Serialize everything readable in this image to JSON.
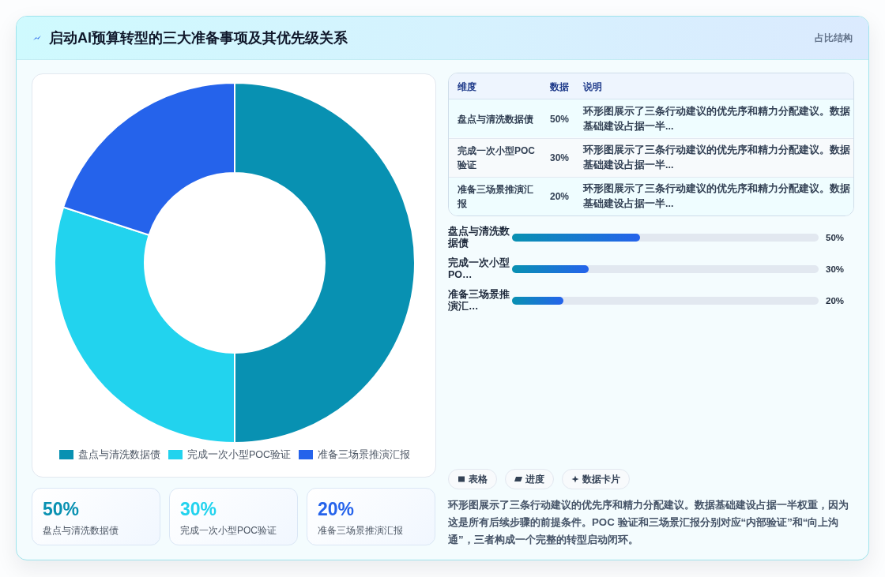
{
  "chart_data": [
    {
      "type": "other",
      "title": "启动AI预算转型的三大准备事项及其优先级关系",
      "subtitle": "占比结构"
    },
    {
      "type": "donut",
      "categories": [
        "盘点与清洗数据债",
        "完成一次小型POC验证",
        "准备三场景推演汇报"
      ],
      "values": [
        50,
        30,
        20
      ],
      "colors": [
        "#0891b2",
        "#22d3ee",
        "#2563eb"
      ],
      "legend": "bottom"
    },
    {
      "type": "other",
      "categories": [
        "盘点与清洗数据债",
        "完成一次小型POC验证",
        "准备三场景推演汇报"
      ],
      "value_labels": [
        "50%",
        "30%",
        "20%"
      ],
      "annotations": [
        "维度",
        "数据",
        "说明",
        "环形图展示了三条行动建议的优先序和精力分配建议。数据基础建设占据一半...",
        "环形图展示了三条行动建议的优先序和精力分配建议。数据基础建设占据一半...",
        "环形图展示了三条行动建议的优先序和精力分配建议。数据基础建设占据一半..."
      ]
    },
    {
      "type": "bar",
      "orientation": "horizontal",
      "categories": [
        "盘点与清洗数据债",
        "完成一次小型PO…",
        "准备三场景推演汇…"
      ],
      "values": [
        50,
        30,
        20
      ],
      "value_labels": [
        "50%",
        "30%",
        "20%"
      ],
      "color": "#2563eb",
      "xlim": [
        0,
        120
      ],
      "tick_labels": "y"
    },
    {
      "type": "other",
      "categories": [
        "盘点与清洗数据债",
        "完成一次小型POC验证",
        "准备三场景推演汇报"
      ],
      "value_labels": [
        "50%",
        "30%",
        "20%"
      ]
    },
    {
      "type": "other",
      "annotations": [
        "表格",
        "进度",
        "数据卡片",
        "环形图展示了三条行动建议的优先序和精力分配建议。数据基础建设占据一半权重，因为这是所有后续步骤的前提条件。POC 验证和三场景汇报分别对应“内部验证”和“向上沟通”，三者构成一个完整的转型启动闭环。"
      ]
    }
  ]
}
